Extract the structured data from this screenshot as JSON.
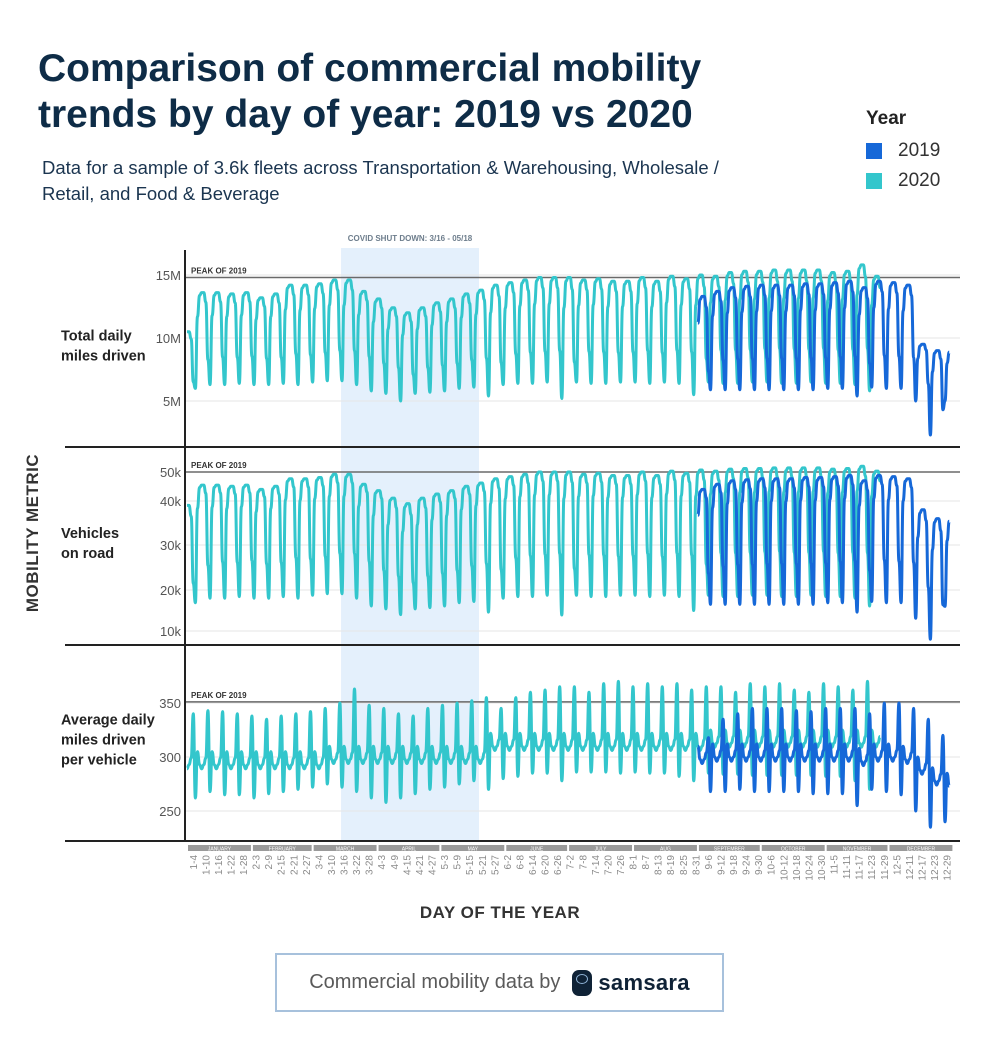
{
  "header": {
    "title": "Comparison of commercial mobility trends by day of year: 2019 vs 2020",
    "subtitle": "Data for a sample of 3.6k fleets across Transportation & Warehousing, Wholesale / Retail, and Food & Beverage"
  },
  "legend": {
    "title": "Year",
    "items": [
      {
        "label": "2019",
        "color": "#1668d8"
      },
      {
        "label": "2020",
        "color": "#33c6cc"
      }
    ]
  },
  "footer": {
    "text": "Commercial mobility data by",
    "brand": "samsara"
  },
  "chart_data": {
    "type": "line",
    "ylabel": "MOBILITY METRIC",
    "xlabel": "DAY OF THE YEAR",
    "annotation": {
      "label": "COVID SHUT DOWN: 3/16 - 05/18",
      "start": "3-16",
      "end": "5-18",
      "color": "#e4f0fc"
    },
    "peak_label": "PEAK OF 2019",
    "months": [
      "JANUARY",
      "FEBRUARY",
      "MARCH",
      "APRIL",
      "MAY",
      "JUNE",
      "JULY",
      "AUG",
      "SEPTEMBER",
      "OCTOBER",
      "NOVEMBER",
      "DECEMBER"
    ],
    "x_ticks": [
      "1-4",
      "1-10",
      "1-16",
      "1-22",
      "1-28",
      "2-3",
      "2-9",
      "2-15",
      "2-21",
      "2-27",
      "3-4",
      "3-10",
      "3-16",
      "3-22",
      "3-28",
      "4-3",
      "4-9",
      "4-15",
      "4-21",
      "4-27",
      "5-3",
      "5-9",
      "5-15",
      "5-21",
      "5-27",
      "6-2",
      "6-8",
      "6-14",
      "6-20",
      "6-26",
      "7-2",
      "7-8",
      "7-14",
      "7-20",
      "7-26",
      "8-1",
      "8-7",
      "8-13",
      "8-19",
      "8-25",
      "8-31",
      "9-6",
      "9-12",
      "9-18",
      "9-24",
      "9-30",
      "10-6",
      "10-12",
      "10-18",
      "10-24",
      "10-30",
      "11-5",
      "11-11",
      "11-17",
      "11-23",
      "11-29",
      "12-5",
      "12-11",
      "12-17",
      "12-23",
      "12-29"
    ],
    "series_days": {
      "2020": [
        1,
        332
      ],
      "2019": [
        245,
        365
      ]
    },
    "note": "weekly values (weekday peak / weekend low) read from the chart",
    "panels": [
      {
        "label": "Total daily miles driven",
        "y_ticks": [
          {
            "value": 15,
            "label": "15M"
          },
          {
            "value": 10,
            "label": "10M"
          },
          {
            "value": 5,
            "label": "5M"
          }
        ],
        "peak_2019": 14.8,
        "series": [
          {
            "name": "2020",
            "weekly_peak": [
              10.5,
              13.6,
              13.6,
              13.5,
              13.6,
              13.2,
              13.5,
              14.2,
              14.2,
              14.3,
              14.6,
              14.6,
              13.7,
              13.1,
              12.4,
              12.0,
              12.4,
              12.8,
              13.1,
              13.5,
              13.8,
              14.2,
              14.4,
              14.6,
              14.8,
              14.8,
              14.8,
              14.6,
              14.7,
              14.5,
              14.5,
              14.8,
              14.5,
              14.9,
              14.7,
              15.0,
              14.9,
              15.2,
              15.3,
              15.3,
              15.4,
              15.4,
              15.4,
              15.4,
              15.2,
              15.3,
              15.8,
              14.9
            ],
            "weekly_low": [
              4.8,
              6.0,
              6.3,
              6.3,
              6.4,
              6.3,
              6.3,
              6.4,
              6.3,
              6.5,
              6.6,
              6.6,
              6.3,
              5.8,
              5.6,
              5.0,
              5.6,
              5.7,
              5.8,
              6.0,
              6.1,
              5.4,
              6.3,
              6.4,
              6.4,
              6.5,
              5.2,
              6.5,
              6.4,
              6.4,
              6.5,
              6.5,
              6.4,
              6.5,
              6.4,
              5.5,
              6.5,
              6.4,
              6.4,
              6.5,
              6.5,
              6.4,
              6.4,
              6.5,
              6.4,
              6.4,
              6.3,
              5.8
            ]
          },
          {
            "name": "2019",
            "weekly_peak": [
              13.3,
              13.7,
              14.0,
              14.1,
              14.2,
              14.2,
              14.2,
              14.3,
              14.3,
              14.4,
              14.5,
              14.0,
              14.5,
              14.4,
              14.2,
              9.5,
              9.0,
              9.0
            ],
            "weekly_low": [
              4.8,
              5.9,
              5.9,
              5.9,
              5.9,
              5.9,
              5.9,
              5.9,
              5.9,
              6.0,
              6.0,
              5.4,
              6.1,
              6.0,
              6.0,
              5.0,
              2.3,
              5.0
            ]
          }
        ]
      },
      {
        "label": "Vehicles on road",
        "y_ticks": [
          {
            "value": 50,
            "label": "50k"
          },
          {
            "value": 40,
            "label": "40k"
          },
          {
            "value": 30,
            "label": "30k"
          },
          {
            "value": 20,
            "label": "20k"
          },
          {
            "value": 10,
            "label": "10k"
          }
        ],
        "peak_2019": 50,
        "series": [
          {
            "name": "2020",
            "weekly_peak": [
              39,
              45.5,
              45.5,
              45.1,
              45.5,
              44,
              45.1,
              47.7,
              47.7,
              48.1,
              49.2,
              49.2,
              45.8,
              43.6,
              41,
              39.4,
              41,
              42.4,
              43.6,
              45.1,
              46.2,
              47.7,
              48.4,
              49.2,
              50,
              50,
              50,
              49.2,
              49.6,
              48.8,
              48.8,
              50,
              48.8,
              50.3,
              49.6,
              50.7,
              50.3,
              51,
              51.2,
              51.2,
              51.4,
              51.4,
              51.4,
              51.4,
              51,
              51.2,
              52,
              50.3
            ],
            "weekly_low": [
              14,
              16.9,
              18,
              18,
              18.4,
              18,
              18,
              18.4,
              18,
              18.7,
              19.1,
              19.1,
              18,
              16.1,
              15.4,
              14,
              15.4,
              15.7,
              16.1,
              16.9,
              17.2,
              14.6,
              18,
              18.4,
              18.4,
              18.7,
              13.9,
              18.7,
              18.4,
              18.4,
              18.7,
              18.7,
              18.4,
              18.7,
              18.4,
              15,
              18.7,
              18.4,
              18.4,
              18.7,
              18.7,
              18.4,
              18.4,
              18.7,
              18.4,
              18.4,
              18,
              16.1
            ]
          },
          {
            "name": "2019",
            "weekly_peak": [
              44,
              45.8,
              47,
              47.3,
              47.7,
              47.7,
              47.7,
              48.1,
              48.1,
              48.4,
              48.8,
              47,
              48.8,
              48.4,
              47.7,
              38,
              36,
              36
            ],
            "weekly_low": [
              15,
              16.5,
              16.5,
              16.5,
              16.5,
              16.5,
              16.5,
              16.5,
              16.5,
              16.9,
              16.9,
              14.6,
              17.2,
              16.9,
              16.9,
              13.1,
              8,
              16
            ]
          }
        ]
      },
      {
        "label": "Average daily miles driven per vehicle",
        "y_ticks": [
          {
            "value": 350,
            "label": "350"
          },
          {
            "value": 300,
            "label": "300"
          },
          {
            "value": 250,
            "label": "250"
          }
        ],
        "peak_2019": 351,
        "series": [
          {
            "name": "2020",
            "weekly_mid": [
              295,
              295,
              295,
              295,
              295,
              295,
              295,
              295,
              295,
              295,
              300,
              300,
              300,
              300,
              300,
              300,
              300,
              300,
              300,
              300,
              300,
              312,
              312,
              312,
              312,
              312,
              312,
              312,
              312,
              312,
              312,
              312,
              312,
              312,
              312,
              312,
              315,
              315,
              315,
              315,
              315,
              315,
              315,
              315,
              315,
              315,
              315,
              315
            ],
            "weekly_spike": [
              340,
              343,
              342,
              340,
              338,
              335,
              338,
              340,
              342,
              345,
              350,
              363,
              348,
              345,
              340,
              338,
              345,
              348,
              350,
              352,
              355,
              345,
              355,
              360,
              362,
              365,
              365,
              360,
              368,
              370,
              365,
              368,
              365,
              368,
              362,
              365,
              365,
              360,
              368,
              365,
              368,
              362,
              360,
              368,
              365,
              362,
              370,
              375
            ],
            "weekly_low": [
              245,
              262,
              268,
              265,
              265,
              262,
              266,
              268,
              270,
              272,
              275,
              272,
              268,
              262,
              258,
              262,
              266,
              270,
              272,
              275,
              278,
              270,
              280,
              282,
              285,
              285,
              278,
              286,
              286,
              286,
              285,
              286,
              285,
              285,
              282,
              278,
              285,
              284,
              284,
              283,
              283,
              283,
              283,
              283,
              282,
              282,
              278,
              270
            ]
          },
          {
            "name": "2019",
            "weekly_mid": [
              300,
              302,
              302,
              302,
              302,
              302,
              302,
              302,
              302,
              302,
              302,
              298,
              302,
              302,
              300,
              290,
              280,
              275
            ],
            "weekly_spike": [
              318,
              335,
              340,
              345,
              345,
              345,
              343,
              342,
              345,
              345,
              345,
              340,
              350,
              350,
              345,
              335,
              320,
              325
            ],
            "weekly_low": [
              270,
              268,
              268,
              270,
              268,
              268,
              268,
              268,
              266,
              266,
              266,
              255,
              270,
              268,
              265,
              250,
              235,
              240
            ]
          }
        ]
      }
    ]
  }
}
